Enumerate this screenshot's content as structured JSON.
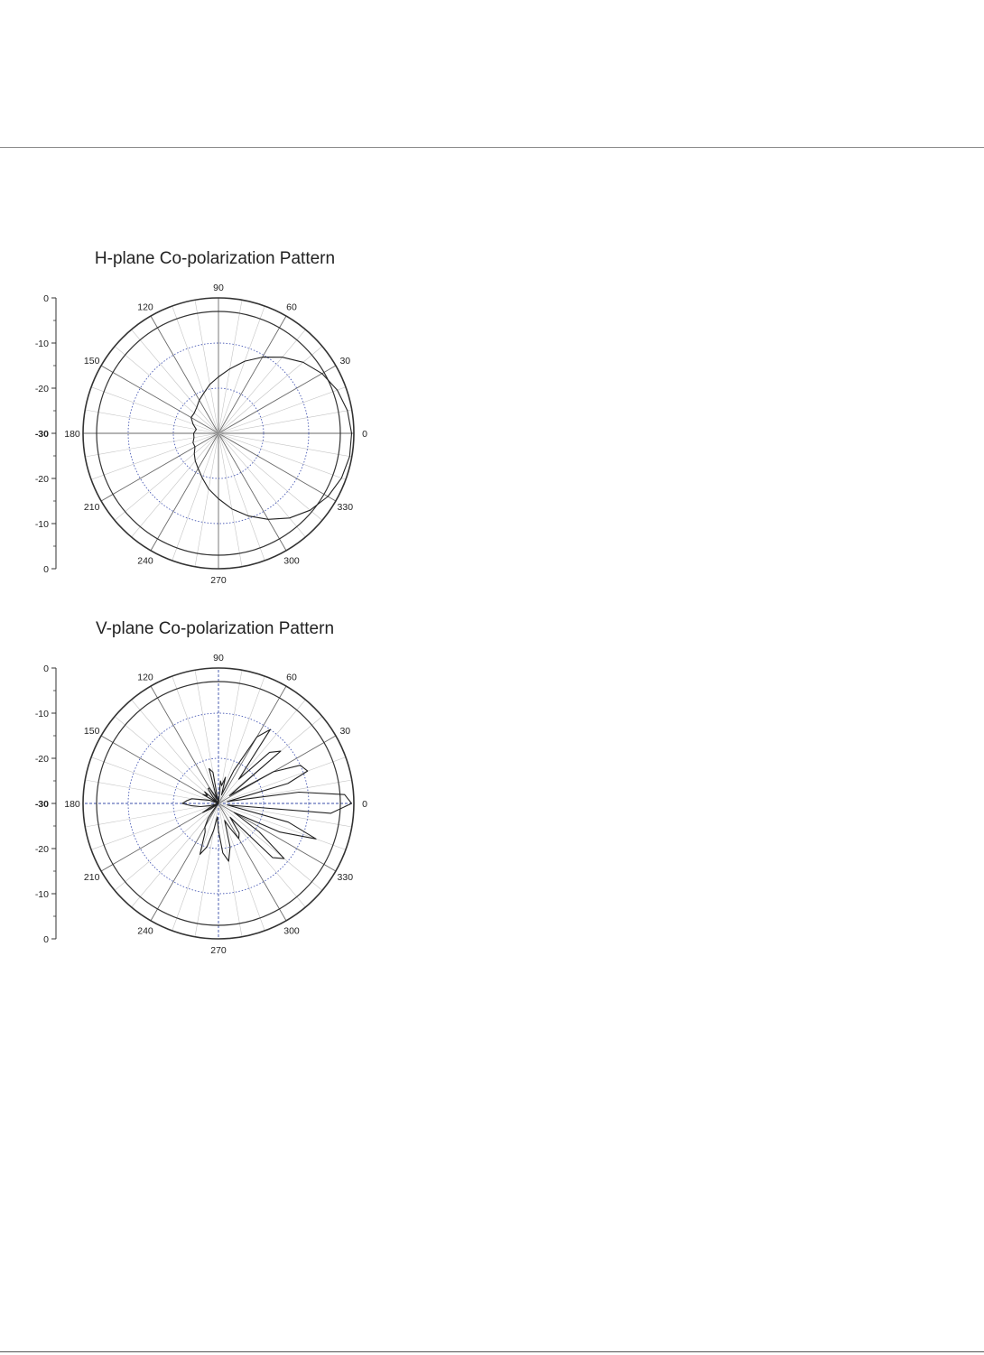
{
  "chart_data": [
    {
      "type": "polar",
      "title": "H-plane Co-polarization Pattern",
      "angle_ticks": [
        "0",
        "30",
        "60",
        "90",
        "120",
        "150",
        "180",
        "210",
        "240",
        "270",
        "300",
        "330"
      ],
      "radial_axis_ticks": [
        "0",
        "-10",
        "-20",
        "-30",
        "-20",
        "-10",
        "0"
      ],
      "radial_range_db": [
        -30,
        0
      ],
      "rings_db": [
        -20,
        -10,
        -3,
        0
      ],
      "grid": true,
      "series": [
        {
          "angles_deg": [
            0,
            10,
            20,
            30,
            40,
            50,
            60,
            70,
            80,
            90,
            100,
            110,
            120,
            130,
            140,
            150,
            160,
            170,
            180,
            190,
            200,
            210,
            220,
            230,
            240,
            250,
            260,
            270,
            280,
            290,
            300,
            310,
            320,
            330,
            340,
            350
          ],
          "values_db": [
            -0.5,
            -1,
            -2,
            -3.5,
            -5.5,
            -8,
            -10.5,
            -13,
            -15.5,
            -17.5,
            -19,
            -20.5,
            -21.5,
            -22.5,
            -23,
            -23,
            -24,
            -25,
            -24.5,
            -24.5,
            -24,
            -24,
            -23,
            -22,
            -21,
            -19.5,
            -17.5,
            -15.5,
            -13,
            -10.5,
            -8,
            -5.5,
            -3.5,
            -2,
            -1,
            -0.5
          ]
        }
      ]
    },
    {
      "type": "polar",
      "title": "V-plane Co-polarization Pattern",
      "angle_ticks": [
        "0",
        "30",
        "60",
        "90",
        "120",
        "150",
        "180",
        "210",
        "240",
        "270",
        "300",
        "330"
      ],
      "radial_axis_ticks": [
        "0",
        "-10",
        "-20",
        "-30",
        "-20",
        "-10",
        "0"
      ],
      "radial_range_db": [
        -30,
        0
      ],
      "rings_db": [
        -20,
        -10,
        -3,
        0
      ],
      "grid": true,
      "series": [
        {
          "angles_deg": [
            0,
            4,
            8,
            12,
            16,
            20,
            25,
            30,
            35,
            40,
            45,
            50,
            55,
            60,
            65,
            70,
            75,
            80,
            85,
            90,
            95,
            100,
            105,
            110,
            115,
            120,
            125,
            130,
            135,
            140,
            145,
            150,
            155,
            160,
            165,
            170,
            175,
            180,
            185,
            190,
            195,
            200,
            205,
            210,
            215,
            220,
            225,
            230,
            235,
            240,
            245,
            250,
            255,
            260,
            265,
            270,
            275,
            280,
            285,
            290,
            295,
            300,
            305,
            310,
            315,
            320,
            325,
            330,
            335,
            340,
            345,
            350,
            355
          ],
          "values_db": [
            -0.5,
            -2,
            -12,
            -28,
            -14,
            -9,
            -10,
            -16,
            -27,
            -12,
            -14,
            -23,
            -10,
            -13,
            -22,
            -28,
            -24,
            -26,
            -25,
            -30,
            -30,
            -23,
            -22,
            -29,
            -28,
            -26,
            -26,
            -28,
            -30,
            -26,
            -27,
            -26,
            -30,
            -28,
            -27,
            -24,
            -23,
            -22,
            -24,
            -26,
            -28,
            -30,
            -28,
            -26,
            -28,
            -30,
            -30,
            -29,
            -26,
            -24,
            -23,
            -18,
            -20,
            -24,
            -27,
            -24,
            -19,
            -17,
            -20,
            -26,
            -24,
            -21,
            -22,
            -26,
            -13,
            -11,
            -19,
            -26,
            -15,
            -7,
            -14,
            -28,
            -5
          ]
        }
      ]
    }
  ]
}
